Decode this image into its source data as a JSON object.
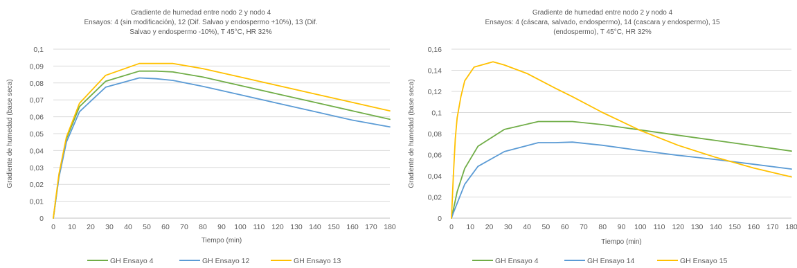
{
  "chart_data": [
    {
      "type": "line",
      "title_lines": [
        "Gradiente de humedad entre nodo 2 y nodo 4",
        "Ensayos: 4 (sin modificación), 12 (Dif. Salvao y endospermo +10%), 13 (Dif.",
        "Salvao y endospermo -10%), T 45°C, HR 32%"
      ],
      "xlabel": "Tiempo (min)",
      "ylabel": "Gradiente de humedad (base seca)",
      "xlim": [
        0,
        180
      ],
      "ylim": [
        0,
        0.1
      ],
      "xticks": [
        0,
        10,
        20,
        30,
        40,
        50,
        60,
        70,
        80,
        90,
        100,
        110,
        120,
        130,
        140,
        150,
        160,
        170,
        180
      ],
      "yticks": [
        0,
        0.01,
        0.02,
        0.03,
        0.04,
        0.05,
        0.06,
        0.07,
        0.08,
        0.09,
        0.1
      ],
      "ytick_labels": [
        "0",
        "0,01",
        "0,02",
        "0,03",
        "0,04",
        "0,05",
        "0,06",
        "0,07",
        "0,08",
        "0,09",
        "0,1"
      ],
      "grid": true,
      "legend_position": "bottom",
      "series": [
        {
          "name": "GH Ensayo 4",
          "color": "#70ad47",
          "x": [
            0,
            1,
            3,
            7,
            14,
            28,
            46,
            55,
            64,
            80,
            100,
            120,
            140,
            160,
            180
          ],
          "y": [
            0,
            0.008,
            0.025,
            0.047,
            0.066,
            0.081,
            0.087,
            0.087,
            0.0865,
            0.0835,
            0.0785,
            0.0735,
            0.0685,
            0.0635,
            0.0585
          ]
        },
        {
          "name": "GH Ensayo 12",
          "color": "#5b9bd5",
          "x": [
            0,
            1,
            3,
            7,
            14,
            28,
            46,
            55,
            64,
            80,
            100,
            120,
            140,
            160,
            180
          ],
          "y": [
            0,
            0.008,
            0.024,
            0.045,
            0.063,
            0.0775,
            0.083,
            0.0825,
            0.0815,
            0.078,
            0.073,
            0.068,
            0.063,
            0.058,
            0.054
          ]
        },
        {
          "name": "GH Ensayo 13",
          "color": "#ffc000",
          "x": [
            0,
            1,
            3,
            7,
            14,
            28,
            46,
            55,
            64,
            80,
            100,
            120,
            140,
            160,
            180
          ],
          "y": [
            0,
            0.009,
            0.026,
            0.048,
            0.068,
            0.0845,
            0.0915,
            0.0915,
            0.0915,
            0.0885,
            0.0835,
            0.0785,
            0.0735,
            0.0685,
            0.0635
          ]
        }
      ]
    },
    {
      "type": "line",
      "title_lines": [
        "Gradiente de humedad entre nodo 2 y nodo 4",
        "Ensayos: 4 (cáscara, salvado, endospermo), 14 (cascara y endospermo), 15",
        "(endospermo), T 45°C, HR 32%"
      ],
      "xlabel": "Tiempo (min)",
      "ylabel": "Gradiente de humedad (base seca)",
      "xlim": [
        0,
        180
      ],
      "ylim": [
        0,
        0.16
      ],
      "xticks": [
        0,
        10,
        20,
        30,
        40,
        50,
        60,
        70,
        80,
        90,
        100,
        110,
        120,
        130,
        140,
        150,
        160,
        170,
        180
      ],
      "yticks": [
        0,
        0.02,
        0.04,
        0.06,
        0.08,
        0.1,
        0.12,
        0.14,
        0.16
      ],
      "ytick_labels": [
        "0",
        "0,02",
        "0,04",
        "0,06",
        "0,08",
        "0,1",
        "0,12",
        "0,14",
        "0,16"
      ],
      "grid": true,
      "legend_position": "bottom",
      "series": [
        {
          "name": "GH Ensayo 4",
          "color": "#70ad47",
          "x": [
            0,
            1,
            3,
            7,
            14,
            28,
            46,
            55,
            64,
            80,
            100,
            120,
            140,
            160,
            180
          ],
          "y": [
            0,
            0.008,
            0.025,
            0.047,
            0.068,
            0.084,
            0.0915,
            0.0915,
            0.0915,
            0.0885,
            0.0835,
            0.0785,
            0.0735,
            0.0685,
            0.0635
          ]
        },
        {
          "name": "GH Ensayo 14",
          "color": "#5b9bd5",
          "x": [
            0,
            1,
            3,
            7,
            14,
            28,
            46,
            55,
            64,
            80,
            100,
            120,
            140,
            160,
            180
          ],
          "y": [
            0,
            0.005,
            0.014,
            0.032,
            0.049,
            0.063,
            0.0715,
            0.0715,
            0.072,
            0.069,
            0.064,
            0.0595,
            0.0555,
            0.051,
            0.0465
          ]
        },
        {
          "name": "GH Ensayo 15",
          "color": "#ffc000",
          "x": [
            0,
            1,
            2,
            3,
            5,
            7,
            12,
            22,
            28,
            40,
            55,
            64,
            80,
            100,
            120,
            140,
            160,
            180
          ],
          "y": [
            0,
            0.04,
            0.075,
            0.095,
            0.115,
            0.13,
            0.143,
            0.148,
            0.145,
            0.137,
            0.123,
            0.115,
            0.1,
            0.083,
            0.069,
            0.0575,
            0.0475,
            0.039
          ]
        }
      ]
    }
  ]
}
